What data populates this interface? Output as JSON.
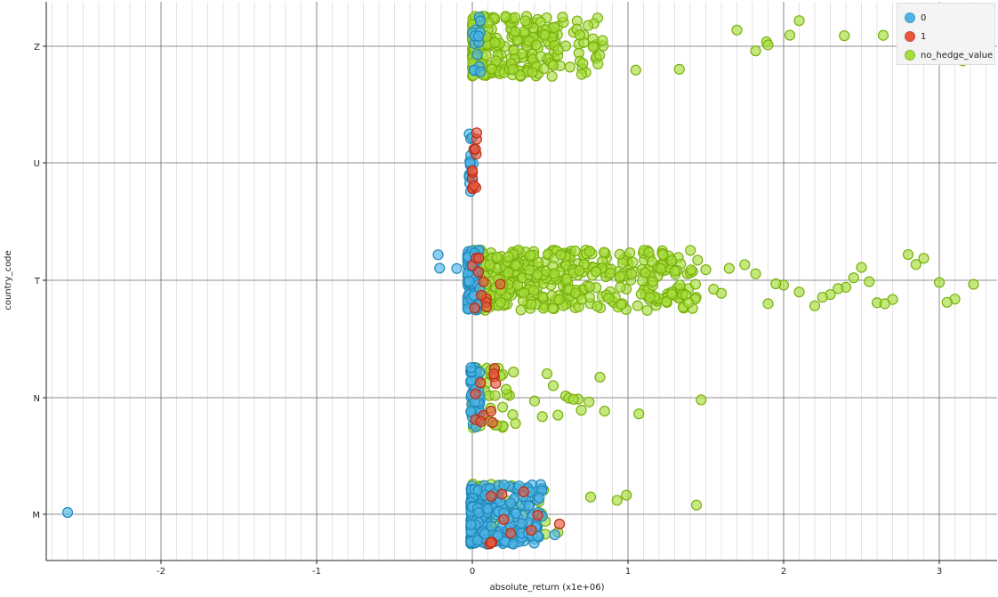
{
  "chart_data": {
    "type": "scatter",
    "xlabel": "absolute_return (x1e+06)",
    "ylabel": "country_code",
    "xlim": [
      -2.7,
      3.35
    ],
    "x_ticks": [
      -2,
      -1,
      0,
      1,
      2,
      3
    ],
    "categories": [
      "Z",
      "U",
      "T",
      "N",
      "M"
    ],
    "grid": true,
    "legend_position": "top-right",
    "colors": {
      "0": "#4fb5e6",
      "1": "#e8583f",
      "no_hedge_value": "#a6dd3a"
    },
    "series": [
      {
        "name": "no_hedge_value",
        "color": "#a6dd3a",
        "clusters": [
          {
            "category": "Z",
            "xmin": 0.0,
            "xmax": 0.85,
            "count": 260
          },
          {
            "category": "T",
            "xmin": 0.0,
            "xmax": 1.45,
            "count": 520
          },
          {
            "category": "N",
            "xmin": 0.0,
            "xmax": 0.3,
            "count": 50
          },
          {
            "category": "M",
            "xmin": 0.0,
            "xmax": 0.5,
            "count": 60
          }
        ],
        "points": [
          {
            "x": 1.82,
            "y": "Z"
          },
          {
            "x": 1.89,
            "y": "Z"
          },
          {
            "x": 2.1,
            "y": "Z"
          },
          {
            "x": 2.04,
            "y": "Z"
          },
          {
            "x": 1.9,
            "y": "Z"
          },
          {
            "x": 2.64,
            "y": "Z"
          },
          {
            "x": 2.39,
            "y": "Z"
          },
          {
            "x": 3.15,
            "y": "Z"
          },
          {
            "x": 1.33,
            "y": "Z"
          },
          {
            "x": 1.05,
            "y": "Z"
          },
          {
            "x": 1.7,
            "y": "Z"
          },
          {
            "x": 1.5,
            "y": "T"
          },
          {
            "x": 1.6,
            "y": "T"
          },
          {
            "x": 1.75,
            "y": "T"
          },
          {
            "x": 1.82,
            "y": "T"
          },
          {
            "x": 1.9,
            "y": "T"
          },
          {
            "x": 2.0,
            "y": "T"
          },
          {
            "x": 2.1,
            "y": "T"
          },
          {
            "x": 2.2,
            "y": "T"
          },
          {
            "x": 2.3,
            "y": "T"
          },
          {
            "x": 2.4,
            "y": "T"
          },
          {
            "x": 2.5,
            "y": "T"
          },
          {
            "x": 2.6,
            "y": "T"
          },
          {
            "x": 2.7,
            "y": "T"
          },
          {
            "x": 2.8,
            "y": "T"
          },
          {
            "x": 2.9,
            "y": "T"
          },
          {
            "x": 3.0,
            "y": "T"
          },
          {
            "x": 3.1,
            "y": "T"
          },
          {
            "x": 3.22,
            "y": "T"
          },
          {
            "x": 2.45,
            "y": "T"
          },
          {
            "x": 2.55,
            "y": "T"
          },
          {
            "x": 1.65,
            "y": "T"
          },
          {
            "x": 1.95,
            "y": "T"
          },
          {
            "x": 2.65,
            "y": "T"
          },
          {
            "x": 3.05,
            "y": "T"
          },
          {
            "x": 2.25,
            "y": "T"
          },
          {
            "x": 2.85,
            "y": "T"
          },
          {
            "x": 1.55,
            "y": "T"
          },
          {
            "x": 2.35,
            "y": "T"
          },
          {
            "x": 0.45,
            "y": "N"
          },
          {
            "x": 0.52,
            "y": "N"
          },
          {
            "x": 0.6,
            "y": "N"
          },
          {
            "x": 0.68,
            "y": "N"
          },
          {
            "x": 0.75,
            "y": "N"
          },
          {
            "x": 0.62,
            "y": "N"
          },
          {
            "x": 0.7,
            "y": "N"
          },
          {
            "x": 0.55,
            "y": "N"
          },
          {
            "x": 0.48,
            "y": "N"
          },
          {
            "x": 0.82,
            "y": "N"
          },
          {
            "x": 0.85,
            "y": "N"
          },
          {
            "x": 1.07,
            "y": "N"
          },
          {
            "x": 1.47,
            "y": "N"
          },
          {
            "x": 0.65,
            "y": "N"
          },
          {
            "x": 0.4,
            "y": "N"
          },
          {
            "x": 0.76,
            "y": "M"
          },
          {
            "x": 0.93,
            "y": "M"
          },
          {
            "x": 0.99,
            "y": "M"
          },
          {
            "x": 1.44,
            "y": "M"
          },
          {
            "x": 0.55,
            "y": "M"
          }
        ]
      },
      {
        "name": "0",
        "color": "#4fb5e6",
        "clusters": [
          {
            "category": "Z",
            "xmin": 0.0,
            "xmax": 0.07,
            "count": 14
          },
          {
            "category": "U",
            "xmin": -0.02,
            "xmax": 0.02,
            "count": 16
          },
          {
            "category": "T",
            "xmin": -0.03,
            "xmax": 0.05,
            "count": 90
          },
          {
            "category": "N",
            "xmin": -0.01,
            "xmax": 0.05,
            "count": 40
          },
          {
            "category": "M",
            "xmin": -0.01,
            "xmax": 0.45,
            "count": 260
          }
        ],
        "points": [
          {
            "x": -2.6,
            "y": "M"
          },
          {
            "x": -0.22,
            "y": "T"
          },
          {
            "x": -0.21,
            "y": "T"
          },
          {
            "x": -0.1,
            "y": "T"
          },
          {
            "x": 0.53,
            "y": "M"
          },
          {
            "x": 0.45,
            "y": "M"
          },
          {
            "x": 0.43,
            "y": "M"
          }
        ]
      },
      {
        "name": "1",
        "color": "#e8583f",
        "clusters": [
          {
            "category": "U",
            "xmin": 0.0,
            "xmax": 0.03,
            "count": 12
          },
          {
            "category": "T",
            "xmin": 0.0,
            "xmax": 0.1,
            "count": 10
          },
          {
            "category": "N",
            "xmin": 0.02,
            "xmax": 0.15,
            "count": 8
          },
          {
            "category": "M",
            "xmin": 0.1,
            "xmax": 0.5,
            "count": 8
          }
        ],
        "points": [
          {
            "x": 0.18,
            "y": "T"
          },
          {
            "x": 0.13,
            "y": "N"
          },
          {
            "x": 0.15,
            "y": "N"
          },
          {
            "x": 0.12,
            "y": "N"
          },
          {
            "x": 0.56,
            "y": "M"
          },
          {
            "x": 0.42,
            "y": "M"
          },
          {
            "x": 0.33,
            "y": "M"
          }
        ]
      }
    ]
  }
}
